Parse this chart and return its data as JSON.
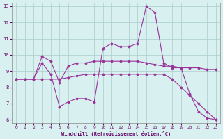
{
  "xlabel": "Windchill (Refroidissement éolien,°C)",
  "background_color": "#d8f0f0",
  "line_color": "#993399",
  "grid_color": "#aacccc",
  "xlim": [
    -0.5,
    23.5
  ],
  "ylim": [
    5.8,
    13.2
  ],
  "xticks": [
    0,
    1,
    2,
    3,
    4,
    5,
    6,
    7,
    8,
    9,
    10,
    11,
    12,
    13,
    14,
    15,
    16,
    17,
    18,
    19,
    20,
    21,
    22,
    23
  ],
  "yticks": [
    6,
    7,
    8,
    9,
    10,
    11,
    12,
    13
  ],
  "line1_x": [
    0,
    1,
    2,
    3,
    4,
    5,
    6,
    7,
    8,
    9,
    10,
    11,
    12,
    13,
    14,
    15,
    16,
    17,
    18,
    19,
    20,
    21,
    22,
    23
  ],
  "line1_y": [
    8.5,
    8.5,
    8.5,
    9.9,
    9.6,
    8.3,
    9.3,
    9.5,
    9.5,
    9.6,
    9.6,
    9.6,
    9.6,
    9.6,
    9.6,
    9.5,
    9.4,
    9.3,
    9.3,
    9.2,
    9.2,
    9.2,
    9.1,
    9.1
  ],
  "line2_x": [
    0,
    1,
    2,
    3,
    4,
    5,
    6,
    7,
    8,
    9,
    10,
    11,
    12,
    13,
    14,
    15,
    16,
    17,
    18,
    19,
    20,
    21,
    22,
    23
  ],
  "line2_y": [
    8.5,
    8.5,
    8.5,
    9.5,
    8.8,
    6.8,
    7.1,
    7.3,
    7.3,
    7.1,
    10.4,
    10.7,
    10.5,
    10.5,
    10.7,
    13.0,
    12.6,
    9.5,
    9.2,
    9.2,
    7.6,
    6.5,
    6.1,
    6.0
  ],
  "line3_x": [
    0,
    1,
    2,
    3,
    4,
    5,
    6,
    7,
    8,
    9,
    10,
    11,
    12,
    13,
    14,
    15,
    16,
    17,
    18,
    19,
    20,
    21,
    22,
    23
  ],
  "line3_y": [
    8.5,
    8.5,
    8.5,
    8.5,
    8.5,
    8.5,
    8.6,
    8.7,
    8.8,
    8.8,
    8.8,
    8.8,
    8.8,
    8.8,
    8.8,
    8.8,
    8.8,
    8.8,
    8.5,
    8.0,
    7.5,
    7.0,
    6.5,
    6.0
  ]
}
